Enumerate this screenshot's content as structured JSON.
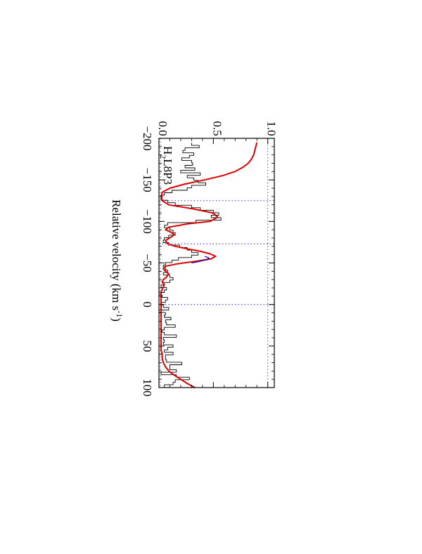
{
  "chart_data": {
    "type": "line",
    "orientation": "rotated-90",
    "xlabel": "Relative velocity (km s",
    "xlabel_sup": "-1",
    "xlabel_tail": ")",
    "ylabel": "",
    "xlim": [
      -200,
      100
    ],
    "ylim": [
      0.0,
      1.0
    ],
    "x_ticks": [
      -200,
      -150,
      -100,
      -50,
      0,
      50,
      100
    ],
    "x_tick_labels": [
      "−200",
      "−150",
      "−100",
      "−50",
      "0",
      "50",
      "100"
    ],
    "y_ticks": [
      0.0,
      0.5,
      1.0
    ],
    "y_tick_labels": [
      "0.0",
      "0.5",
      "1.0"
    ],
    "annotation": {
      "main": "H",
      "sub": "2",
      "tail": "L8P3"
    },
    "reference_lines": {
      "continuum_y": 1.0,
      "zero_y": 0.0,
      "component_x": [
        -125,
        -73,
        0
      ]
    },
    "colors": {
      "data": "#000000",
      "model": "#dd0000",
      "component": "#0000cc",
      "reference": "#3333ff",
      "frame": "#000000"
    },
    "series": [
      {
        "kind": "step",
        "color": "#000000",
        "x": [
          -193,
          -190,
          -187,
          -184,
          -181,
          -178,
          -175,
          -172,
          -169,
          -166,
          -163,
          -160,
          -157,
          -154,
          -151,
          -148,
          -145,
          -142,
          -139,
          -136,
          -133,
          -130,
          -127,
          -124,
          -121,
          -118,
          -115,
          -112,
          -109,
          -106,
          -103,
          -100,
          -97,
          -94,
          -91,
          -88,
          -85,
          -82,
          -79,
          -76,
          -73,
          -70,
          -67,
          -64,
          -61,
          -58,
          -55,
          -52,
          -49,
          -46,
          -43,
          -40,
          -37,
          -34,
          -31,
          -28,
          -25,
          -22,
          -19,
          -16,
          -13,
          -10,
          -7,
          -4,
          -1,
          2,
          5,
          8,
          11,
          14,
          17,
          20,
          23,
          26,
          29,
          32,
          35,
          38,
          41,
          44,
          47,
          50,
          53,
          56,
          59,
          62,
          65,
          68,
          71,
          74,
          77,
          80,
          83,
          86,
          89,
          92,
          95,
          98
        ],
        "y": [
          0.3,
          0.37,
          0.24,
          0.22,
          0.32,
          0.28,
          0.21,
          0.3,
          0.31,
          0.24,
          0.33,
          0.2,
          0.38,
          0.26,
          0.32,
          0.36,
          0.43,
          0.3,
          0.26,
          0.12,
          0.05,
          0.03,
          0.02,
          0.08,
          0.15,
          0.3,
          0.38,
          0.5,
          0.55,
          0.48,
          0.57,
          0.34,
          0.08,
          0.05,
          0.1,
          0.13,
          0.15,
          0.09,
          0.05,
          0.04,
          0.09,
          0.19,
          0.26,
          0.3,
          0.36,
          0.3,
          0.18,
          0.12,
          0.06,
          0.04,
          0.06,
          0.08,
          0.04,
          0.1,
          0.13,
          0.1,
          0.04,
          0.02,
          0.07,
          0.05,
          0.0,
          0.03,
          0.08,
          0.06,
          0.02,
          0.04,
          0.09,
          0.0,
          0.06,
          0.05,
          0.11,
          0.06,
          0.07,
          0.15,
          0.05,
          0.03,
          0.05,
          0.16,
          0.04,
          0.05,
          0.04,
          0.13,
          0.08,
          0.05,
          0.13,
          0.06,
          0.06,
          0.07,
          0.21,
          0.1,
          0.1,
          0.16,
          0.02,
          0.16,
          0.28,
          0.15,
          0.13,
          0.05
        ]
      },
      {
        "kind": "line",
        "color": "#dd0000",
        "x": [
          -195,
          -190,
          -185,
          -180,
          -175,
          -170,
          -165,
          -160,
          -155,
          -150,
          -145,
          -140,
          -135,
          -130,
          -125,
          -120,
          -115,
          -110,
          -105,
          -100,
          -97,
          -93,
          -90,
          -87,
          -84,
          -81,
          -77,
          -73,
          -70,
          -67,
          -64,
          -61,
          -58,
          -55,
          -52,
          -49,
          -46,
          -43,
          -40,
          -37,
          -33,
          -30,
          -27,
          -24,
          -21,
          -18,
          -15,
          -12,
          -9,
          -6,
          -3,
          0,
          5,
          10,
          15,
          20,
          25,
          30,
          35,
          40,
          45,
          50,
          55,
          60,
          65,
          70,
          75,
          80,
          85,
          90,
          95,
          100
        ],
        "y": [
          0.9,
          0.89,
          0.88,
          0.87,
          0.85,
          0.82,
          0.77,
          0.7,
          0.58,
          0.42,
          0.24,
          0.1,
          0.03,
          0.02,
          0.03,
          0.09,
          0.32,
          0.5,
          0.54,
          0.47,
          0.26,
          0.09,
          0.06,
          0.11,
          0.14,
          0.11,
          0.06,
          0.08,
          0.15,
          0.26,
          0.38,
          0.47,
          0.52,
          0.48,
          0.34,
          0.17,
          0.06,
          0.04,
          0.06,
          0.09,
          0.07,
          0.04,
          0.03,
          0.05,
          0.04,
          0.03,
          0.02,
          0.02,
          0.02,
          0.02,
          0.02,
          0.02,
          0.02,
          0.02,
          0.02,
          0.02,
          0.02,
          0.02,
          0.02,
          0.02,
          0.02,
          0.02,
          0.02,
          0.03,
          0.03,
          0.04,
          0.06,
          0.09,
          0.14,
          0.2,
          0.26,
          0.33
        ]
      },
      {
        "kind": "line",
        "color": "#0000cc",
        "x": [
          -58,
          -56,
          -54,
          -52,
          -50
        ],
        "y": [
          0.42,
          0.46,
          0.44,
          0.38,
          0.3
        ]
      }
    ]
  }
}
